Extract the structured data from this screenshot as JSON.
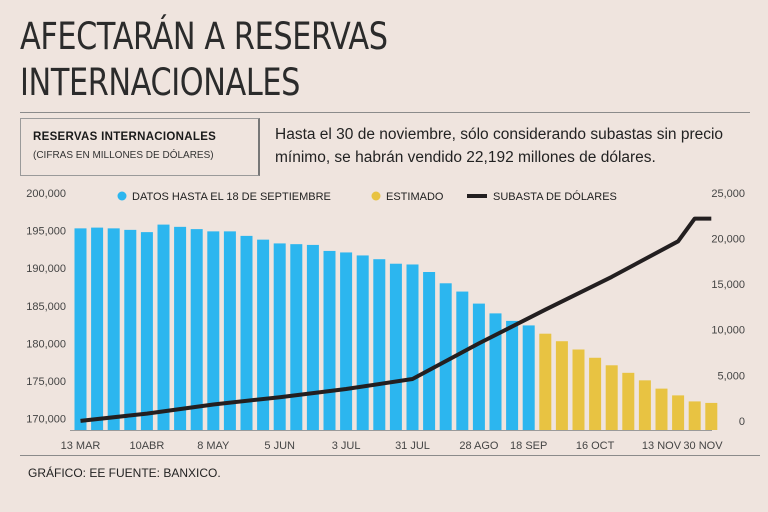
{
  "header": {
    "title_line1": "AFECTARÁN A RESERVAS",
    "title_line2": "INTERNACIONALES"
  },
  "label": {
    "title": "RESERVAS INTERNACIONALES",
    "subtitle": "(CIFRAS EN MILLONES DE DÓLARES)"
  },
  "note": "Hasta el 30 de noviembre, sólo considerando subastas sin precio mínimo, se habrán vendido  22,192 millones de dólares.",
  "footer": "GRÁFICO: EE  FUENTE: BANXICO.",
  "colors": {
    "actual": "#2cb6ef",
    "estimated": "#e8c342",
    "line": "#231f20"
  },
  "chart_data": {
    "type": "bar",
    "legend": [
      "DATOS HASTA EL 18 DE SEPTIEMBRE",
      "ESTIMADO",
      "SUBASTA DE DÓLARES"
    ],
    "left_axis": {
      "min": 168500,
      "max": 200000,
      "ticks": [
        "170,000",
        "175,000",
        "180,000",
        "185,000",
        "190,000",
        "195,000",
        "200,000"
      ],
      "tick_values": [
        170000,
        175000,
        180000,
        185000,
        190000,
        195000,
        200000
      ]
    },
    "right_axis": {
      "min": -1000,
      "max": 25000,
      "ticks": [
        "0",
        "5,000",
        "10,000",
        "15,000",
        "20,000",
        "25,000"
      ],
      "tick_values": [
        0,
        5000,
        10000,
        15000,
        20000,
        25000
      ]
    },
    "x_tick_labels": [
      {
        "label": "13 MAR",
        "index": 0
      },
      {
        "label": "10ABR",
        "index": 4
      },
      {
        "label": "8 MAY",
        "index": 8
      },
      {
        "label": "5 JUN",
        "index": 12
      },
      {
        "label": "3 JUL",
        "index": 16
      },
      {
        "label": "31 JUL",
        "index": 20
      },
      {
        "label": "28 AGO",
        "index": 24
      },
      {
        "label": "18 SEP",
        "index": 27
      },
      {
        "label": "16 OCT",
        "index": 31
      },
      {
        "label": "13 NOV",
        "index": 35
      },
      {
        "label": "30 NOV",
        "index": 37.5
      }
    ],
    "series": [
      {
        "name": "DATOS HASTA EL 18 DE SEPTIEMBRE",
        "values": [
          195300,
          195400,
          195300,
          195100,
          194800,
          195800,
          195500,
          195200,
          194900,
          194900,
          194300,
          193800,
          193300,
          193200,
          193100,
          192300,
          192100,
          191700,
          191200,
          190600,
          190500,
          189500,
          188000,
          186900,
          185300,
          184000,
          183000,
          182400
        ]
      },
      {
        "name": "ESTIMADO",
        "values": [
          181300,
          180300,
          179200,
          178100,
          177100,
          176100,
          175100,
          174000,
          173100,
          172300,
          172100
        ]
      },
      {
        "name": "SUBASTA DE DÓLARES",
        "x": [
          0,
          4,
          8,
          12,
          16,
          20,
          24,
          28,
          32,
          36,
          37,
          38
        ],
        "values": [
          0,
          800,
          1800,
          2600,
          3500,
          4600,
          8500,
          12200,
          15800,
          19700,
          22192,
          22192
        ]
      }
    ]
  }
}
